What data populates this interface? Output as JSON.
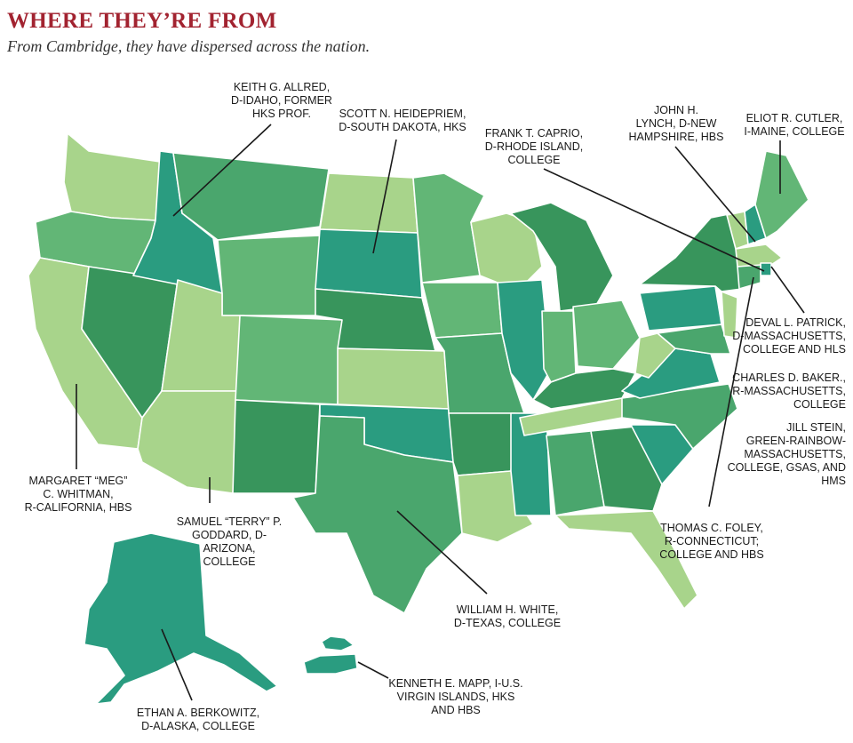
{
  "header": {
    "title": "WHERE THEY’RE FROM",
    "subtitle": "From Cambridge, they have dispersed across the nation."
  },
  "colors": {
    "light": "#a8d48b",
    "medium": "#62b676",
    "mediumdark": "#4aa66d",
    "dark": "#38955c",
    "teal": "#2a9c80",
    "line": "#1a1a1a",
    "title": "#a22330"
  },
  "labels": [
    {
      "id": "allred",
      "text": "KEITH G. ALLRED,\nD-IDAHO, FORMER\nHKS PROF."
    },
    {
      "id": "heidepriem",
      "text": "SCOTT  N. HEIDEPRIEM,\nD-SOUTH DAKOTA, HKS"
    },
    {
      "id": "caprio",
      "text": "FRANK T. CAPRIO,\nD-RHODE ISLAND,\nCOLLEGE"
    },
    {
      "id": "lynch",
      "text": "JOHN H.\nLYNCH, D-NEW\nHAMPSHIRE, HBS"
    },
    {
      "id": "cutler",
      "text": "ELIOT R. CUTLER,\nI-MAINE, COLLEGE"
    },
    {
      "id": "patrick",
      "text": "DEVAL L. PATRICK,\nD-MASSACHUSETTS,\nCOLLEGE AND HLS"
    },
    {
      "id": "baker",
      "text": "CHARLES D. BAKER.,\nR-MASSACHUSETTS,\nCOLLEGE"
    },
    {
      "id": "stein",
      "text": "JILL STEIN,\nGREEN-RAINBOW-\nMASSACHUSETTS,\nCOLLEGE, GSAS, AND\nHMS"
    },
    {
      "id": "foley",
      "text": "THOMAS C. FOLEY,\nR-CONNECTICUT;\nCOLLEGE AND HBS"
    },
    {
      "id": "whitman",
      "text": "MARGARET “MEG”\nC. WHITMAN,\nR-CALIFORNIA, HBS"
    },
    {
      "id": "goddard",
      "text": "SAMUEL “TERRY” P.\nGODDARD, D-ARIZONA,\nCOLLEGE"
    },
    {
      "id": "white",
      "text": "WILLIAM H. WHITE,\nD-TEXAS, COLLEGE"
    },
    {
      "id": "mapp",
      "text": "KENNETH E. MAPP, I-U.S.\nVIRGIN ISLANDS, HKS\nAND HBS"
    },
    {
      "id": "berkowitz",
      "text": "ETHAN A. BERKOWITZ,\nD-ALASKA, COLLEGE"
    }
  ]
}
